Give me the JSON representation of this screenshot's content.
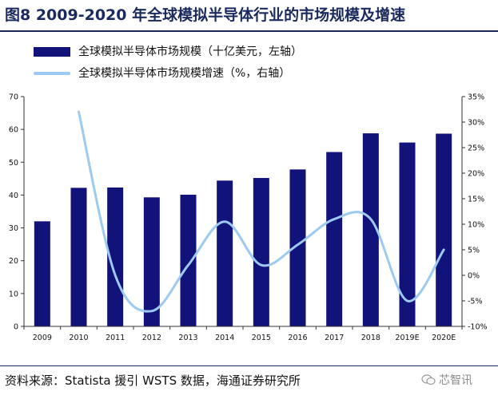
{
  "figure": {
    "title": "图8  2009-2020 年全球模拟半导体行业的市场规模及增速",
    "source": "资料来源：Statista 援引 WSTS 数据，海通证券研究所",
    "watermark": "芯智讯",
    "watermark_icon": "wechat-icon"
  },
  "colors": {
    "bar": "#11127a",
    "line": "#9ec9f0",
    "axis": "#333333",
    "title": "#1b2a5e"
  },
  "chart_data": {
    "type": "bar",
    "categories": [
      "2009",
      "2010",
      "2011",
      "2012",
      "2013",
      "2014",
      "2015",
      "2016",
      "2017",
      "2018",
      "2019E",
      "2020E"
    ],
    "series": [
      {
        "name": "全球模拟半导体市场规模（十亿美元，左轴）",
        "type": "bar",
        "axis": "left",
        "values": [
          32.0,
          42.2,
          42.3,
          39.3,
          40.1,
          44.4,
          45.2,
          47.8,
          53.1,
          58.8,
          56.0,
          58.7
        ]
      },
      {
        "name": "全球模拟半导体市场规模增速（%，右轴）",
        "type": "line",
        "axis": "right",
        "values": [
          null,
          32.0,
          0.0,
          -7.0,
          2.0,
          10.5,
          2.0,
          6.0,
          11.0,
          11.0,
          -5.0,
          5.0
        ]
      }
    ],
    "y_left": {
      "min": 0,
      "max": 70,
      "ticks": [
        0,
        10,
        20,
        30,
        40,
        50,
        60,
        70
      ]
    },
    "y_right": {
      "min": -10,
      "max": 35,
      "ticks": [
        "-10%",
        "-5%",
        "0%",
        "5%",
        "10%",
        "15%",
        "20%",
        "25%",
        "30%",
        "35%"
      ]
    },
    "grid": false,
    "legend_position": "top-left"
  }
}
